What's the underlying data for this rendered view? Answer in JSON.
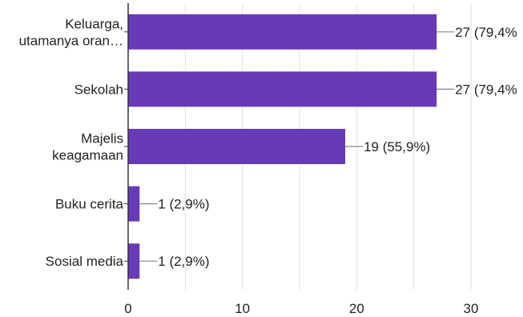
{
  "chart_data": {
    "type": "bar",
    "orientation": "horizontal",
    "categories": [
      [
        "Keluarga,",
        "utamanya oran…"
      ],
      [
        "Sekolah"
      ],
      [
        "Majelis",
        "keagamaan"
      ],
      [
        "Buku cerita"
      ],
      [
        "Sosial media"
      ]
    ],
    "values": [
      27,
      27,
      19,
      1,
      1
    ],
    "data_labels": [
      "27 (79,4%",
      "27 (79,4%",
      "19 (55,9%)",
      "1 (2,9%)",
      "1 (2,9%)"
    ],
    "xlim": [
      0,
      30
    ],
    "x_ticks": [
      0,
      10,
      20,
      30
    ],
    "grid": true,
    "title": "",
    "xlabel": "",
    "ylabel": "",
    "bar_color": "#673ab7",
    "grid_color": "#e0e0e0",
    "axis_color": "#333333"
  }
}
